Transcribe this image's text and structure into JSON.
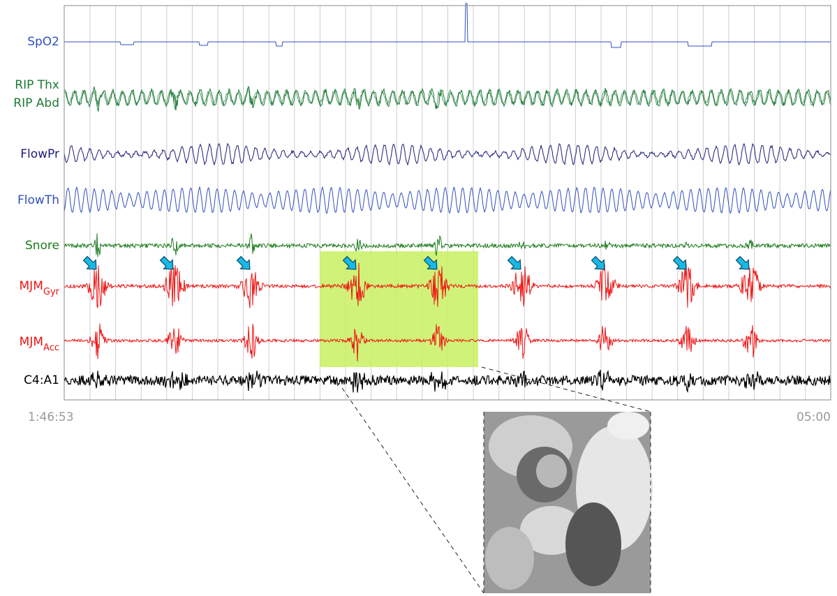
{
  "channels": [
    {
      "label": "SpO2",
      "color": "#2f4fbf"
    },
    {
      "label": "RIP Thx",
      "color": "#1b7a34"
    },
    {
      "label": "RIP Abd",
      "color": "#1b7a34"
    },
    {
      "label": "FlowPr",
      "color": "#1c1c78"
    },
    {
      "label": "FlowTh",
      "color": "#2f4fbf"
    },
    {
      "label": "Snore",
      "color": "#1a7a1a"
    },
    {
      "label": "MJM",
      "subscript": "Gyr",
      "color": "#ee1111"
    },
    {
      "label": "MJM",
      "subscript": "Acc",
      "color": "#ee1111"
    },
    {
      "label": "C4:A1",
      "color": "#000000"
    }
  ],
  "time_start": "1:46:53",
  "time_end": "05:00"
}
